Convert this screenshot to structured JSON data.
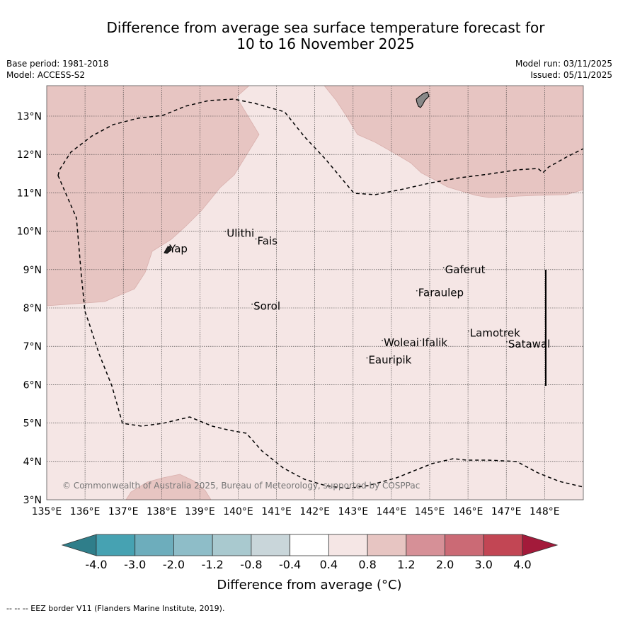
{
  "title": {
    "line1": "Difference from average sea surface temperature forecast for",
    "line2": "10 to 16 November 2025"
  },
  "meta_left": {
    "base_period": "Base period: 1981-2018",
    "model": "Model: ACCESS-S2"
  },
  "meta_right": {
    "model_run": "Model run: 03/11/2025",
    "issued": "Issued: 05/11/2025"
  },
  "map": {
    "lon_range": [
      135,
      149
    ],
    "lat_range": [
      3,
      13.8
    ],
    "lon_ticks": [
      "135°E",
      "136°E",
      "137°E",
      "138°E",
      "139°E",
      "140°E",
      "141°E",
      "142°E",
      "143°E",
      "144°E",
      "145°E",
      "146°E",
      "147°E",
      "148°E"
    ],
    "lat_ticks": [
      "3°N",
      "4°N",
      "5°N",
      "6°N",
      "7°N",
      "8°N",
      "9°N",
      "10°N",
      "11°N",
      "12°N",
      "13°N"
    ],
    "places": [
      {
        "name": "Yap",
        "lon": 138.2,
        "lat": 9.45
      },
      {
        "name": "Ulithi",
        "lon": 139.7,
        "lat": 9.85
      },
      {
        "name": "Fais",
        "lon": 140.5,
        "lat": 9.65
      },
      {
        "name": "Gaferut",
        "lon": 145.4,
        "lat": 8.9
      },
      {
        "name": "Faraulep",
        "lon": 144.7,
        "lat": 8.3
      },
      {
        "name": "Sorol",
        "lon": 140.4,
        "lat": 7.95
      },
      {
        "name": "Woleai",
        "lon": 143.8,
        "lat": 7.0
      },
      {
        "name": "Ifalik",
        "lon": 144.8,
        "lat": 7.0
      },
      {
        "name": "Lamotrek",
        "lon": 146.05,
        "lat": 7.25
      },
      {
        "name": "Satawal",
        "lon": 147.05,
        "lat": 6.97
      },
      {
        "name": "Eauripik",
        "lon": 143.4,
        "lat": 6.55
      }
    ],
    "copyright": "© Commonwealth of Australia 2025, Bureau of Meteorology, supported by COSPPac"
  },
  "colorbar": {
    "labels": [
      "-4.0",
      "-3.0",
      "-2.0",
      "-1.2",
      "-0.8",
      "-0.4",
      "0.4",
      "0.8",
      "1.2",
      "2.0",
      "3.0",
      "4.0"
    ],
    "colors": [
      "#2f7e8a",
      "#46a2b2",
      "#6dadbc",
      "#8ebdc8",
      "#a9c9cf",
      "#c9d6da",
      "#ffffff",
      "#f5e6e5",
      "#e7c5c2",
      "#d69097",
      "#cb6a75",
      "#c24654",
      "#a31a3a"
    ],
    "title": "Difference from average (°C)"
  },
  "footnote": "--  --  -- EEZ border V11 (Flanders Marine Institute, 2019)."
}
